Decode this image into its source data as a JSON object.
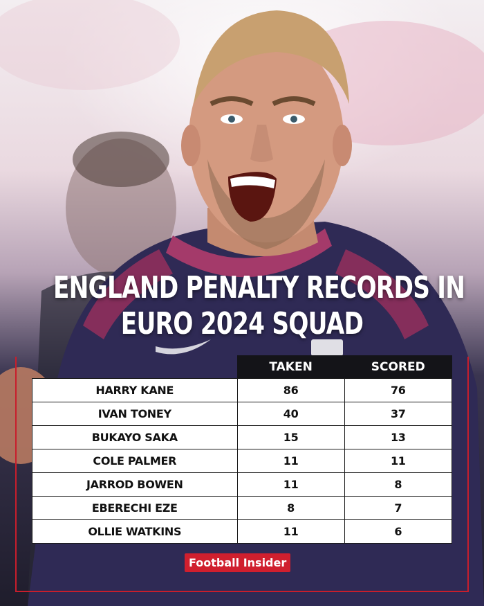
{
  "title": {
    "line1": "ENGLAND PENALTY RECORDS IN",
    "line2": "EURO 2024 SQUAD"
  },
  "table": {
    "headers": [
      "TAKEN",
      "SCORED"
    ],
    "rows": [
      {
        "name": "HARRY KANE",
        "taken": "86",
        "scored": "76"
      },
      {
        "name": "IVAN TONEY",
        "taken": "40",
        "scored": "37"
      },
      {
        "name": "BUKAYO SAKA",
        "taken": "15",
        "scored": "13"
      },
      {
        "name": "COLE PALMER",
        "taken": "11",
        "scored": "11"
      },
      {
        "name": "JARROD BOWEN",
        "taken": "11",
        "scored": "8"
      },
      {
        "name": "EBERECHI EZE",
        "taken": "8",
        "scored": "7"
      },
      {
        "name": "OLLIE WATKINS",
        "taken": "11",
        "scored": "6"
      }
    ]
  },
  "brand": "Football Insider",
  "colors": {
    "accent": "#d01f2e",
    "header_bg": "#141418",
    "jersey": "#2f2a55"
  }
}
